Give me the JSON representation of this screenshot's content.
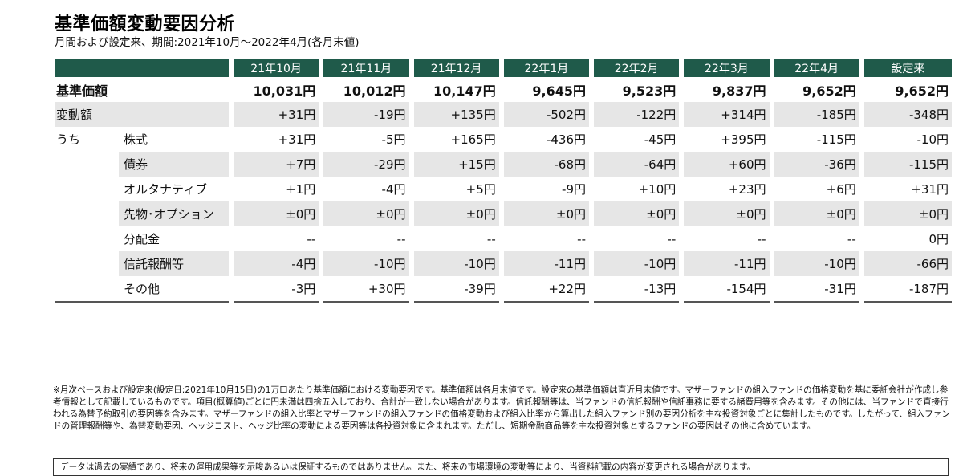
{
  "title": "基準価額変動要因分析",
  "subtitle": "月間および設定来、期間:2021年10月～2022年4月(各月末値)",
  "table": {
    "columns": [
      "21年10月",
      "21年11月",
      "21年12月",
      "22年1月",
      "22年2月",
      "22年3月",
      "22年4月",
      "設定来"
    ],
    "rows": [
      {
        "label1": "基準価額",
        "label2": "",
        "values": [
          "10,031円",
          "10,012円",
          "10,147円",
          "9,645円",
          "9,523円",
          "9,837円",
          "9,652円",
          "9,652円"
        ]
      },
      {
        "label1": "変動額",
        "label2": "",
        "values": [
          "+31円",
          "-19円",
          "+135円",
          "-502円",
          "-122円",
          "+314円",
          "-185円",
          "-348円"
        ]
      },
      {
        "label1": "うち",
        "label2": "株式",
        "values": [
          "+31円",
          "-5円",
          "+165円",
          "-436円",
          "-45円",
          "+395円",
          "-115円",
          "-10円"
        ]
      },
      {
        "label1": "",
        "label2": "債券",
        "values": [
          "+7円",
          "-29円",
          "+15円",
          "-68円",
          "-64円",
          "+60円",
          "-36円",
          "-115円"
        ]
      },
      {
        "label1": "",
        "label2": "オルタナティブ",
        "values": [
          "+1円",
          "-4円",
          "+5円",
          "-9円",
          "+10円",
          "+23円",
          "+6円",
          "+31円"
        ]
      },
      {
        "label1": "",
        "label2": "先物･オプション",
        "values": [
          "±0円",
          "±0円",
          "±0円",
          "±0円",
          "±0円",
          "±0円",
          "±0円",
          "±0円"
        ]
      },
      {
        "label1": "",
        "label2": "分配金",
        "values": [
          "--",
          "--",
          "--",
          "--",
          "--",
          "--",
          "--",
          "0円"
        ]
      },
      {
        "label1": "",
        "label2": "信託報酬等",
        "values": [
          "-4円",
          "-10円",
          "-10円",
          "-11円",
          "-10円",
          "-11円",
          "-10円",
          "-66円"
        ]
      },
      {
        "label1": "",
        "label2": "その他",
        "values": [
          "-3円",
          "+30円",
          "-39円",
          "+22円",
          "-13円",
          "-154円",
          "-31円",
          "-187円"
        ]
      }
    ]
  },
  "notes": "※月次ベースおよび設定来(設定日:2021年10月15日)の1万口あたり基準価額における変動要因です。基準価額は各月末値です。設定来の基準価額は直近月末値です。マザーファンドの組入ファンドの価格変動を基に委託会社が作成し参考情報として記載しているものです。項目(概算値)ごとに円未満は四捨五入しており、合計が一致しない場合があります。信託報酬等は、当ファンドの信託報酬や信託事務に要する諸費用等を含みます。その他には、当ファンドで直接行われる為替予約取引の要因等を含みます。マザーファンドの組入比率とマザーファンドの組入ファンドの価格変動および組入比率から算出した組入ファンド別の要因分析を主な投資対象ごとに集計したものです。したがって、組入ファンドの管理報酬等や、為替変動要因、ヘッジコスト、ヘッジ比率の変動による要因等は各投資対象に含まれます。ただし、短期金融商品等を主な投資対象とするファンドの要因はその他に含めています。",
  "disclaimer": "データは過去の実績であり、将来の運用成果等を示唆あるいは保証するものではありません。また、将来の市場環境の変動等により、当資料記載の内容が変更される場合があります。",
  "colors": {
    "header_bg": "#1f5a4a",
    "row_shade": "#e6e6e6"
  }
}
